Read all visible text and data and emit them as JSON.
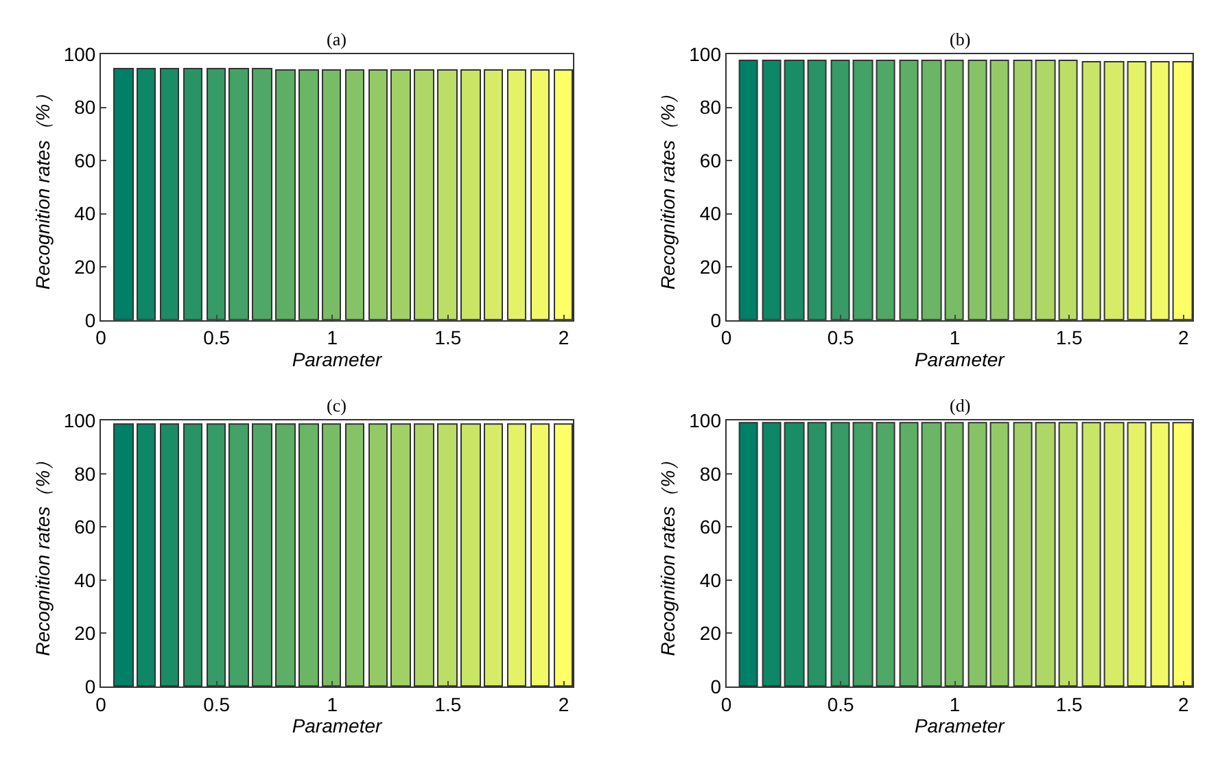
{
  "chart_data": [
    {
      "type": "bar",
      "title": "(a)",
      "xlabel": "Parameter",
      "ylabel": "Recognition rates（%）",
      "x": [
        0.1,
        0.2,
        0.3,
        0.4,
        0.5,
        0.6,
        0.7,
        0.8,
        0.9,
        1.0,
        1.1,
        1.2,
        1.3,
        1.4,
        1.5,
        1.6,
        1.7,
        1.8,
        1.9,
        2.0
      ],
      "values": [
        94.3,
        94.3,
        94.3,
        94.3,
        94.2,
        94.2,
        94.1,
        94.0,
        94.0,
        93.9,
        93.9,
        93.9,
        93.8,
        93.8,
        93.8,
        93.7,
        93.7,
        93.6,
        93.6,
        93.6
      ],
      "colors": [
        "#008066",
        "#0d8766",
        "#1b8d66",
        "#289466",
        "#369b66",
        "#43a266",
        "#51a866",
        "#5eaf66",
        "#6bb666",
        "#79bc66",
        "#86c366",
        "#94ca66",
        "#a1d166",
        "#aed766",
        "#bcde66",
        "#c9e566",
        "#d7eb66",
        "#e4f266",
        "#f2f966",
        "#ffff66"
      ],
      "xlim": [
        0,
        2.04
      ],
      "xticks": [
        0,
        0.5,
        1,
        1.5,
        2
      ],
      "ylim": [
        0,
        100
      ],
      "yticks": [
        0,
        20,
        40,
        60,
        80,
        100
      ]
    },
    {
      "type": "bar",
      "title": "(b)",
      "xlabel": "Parameter",
      "ylabel": "Recognition rates（%）",
      "x": [
        0.1,
        0.2,
        0.3,
        0.4,
        0.5,
        0.6,
        0.7,
        0.8,
        0.9,
        1.0,
        1.1,
        1.2,
        1.3,
        1.4,
        1.5,
        1.6,
        1.7,
        1.8,
        1.9,
        2.0
      ],
      "values": [
        97.2,
        97.2,
        97.2,
        97.2,
        97.3,
        97.3,
        97.3,
        97.4,
        97.4,
        97.4,
        97.3,
        97.3,
        97.2,
        97.2,
        97.2,
        97.1,
        97.1,
        97.1,
        97.0,
        97.0
      ],
      "colors": [
        "#008066",
        "#0d8766",
        "#1b8d66",
        "#289466",
        "#369b66",
        "#43a266",
        "#51a866",
        "#5eaf66",
        "#6bb666",
        "#79bc66",
        "#86c366",
        "#94ca66",
        "#a1d166",
        "#aed766",
        "#bcde66",
        "#c9e566",
        "#d7eb66",
        "#e4f266",
        "#f2f966",
        "#ffff66"
      ],
      "xlim": [
        0,
        2.04
      ],
      "xticks": [
        0,
        0.5,
        1,
        1.5,
        2
      ],
      "ylim": [
        0,
        100
      ],
      "yticks": [
        0,
        20,
        40,
        60,
        80,
        100
      ]
    },
    {
      "type": "bar",
      "title": "(c)",
      "xlabel": "Parameter",
      "ylabel": "Recognition rates（%）",
      "x": [
        0.1,
        0.2,
        0.3,
        0.4,
        0.5,
        0.6,
        0.7,
        0.8,
        0.9,
        1.0,
        1.1,
        1.2,
        1.3,
        1.4,
        1.5,
        1.6,
        1.7,
        1.8,
        1.9,
        2.0
      ],
      "values": [
        98.5,
        98.5,
        98.6,
        98.6,
        98.6,
        98.6,
        98.6,
        98.5,
        98.5,
        98.5,
        98.5,
        98.5,
        98.4,
        98.4,
        98.4,
        98.4,
        98.4,
        98.4,
        98.4,
        98.4
      ],
      "colors": [
        "#008066",
        "#0d8766",
        "#1b8d66",
        "#289466",
        "#369b66",
        "#43a266",
        "#51a866",
        "#5eaf66",
        "#6bb666",
        "#79bc66",
        "#86c366",
        "#94ca66",
        "#a1d166",
        "#aed766",
        "#bcde66",
        "#c9e566",
        "#d7eb66",
        "#e4f266",
        "#f2f966",
        "#ffff66"
      ],
      "xlim": [
        0,
        2.04
      ],
      "xticks": [
        0,
        0.5,
        1,
        1.5,
        2
      ],
      "ylim": [
        0,
        100
      ],
      "yticks": [
        0,
        20,
        40,
        60,
        80,
        100
      ]
    },
    {
      "type": "bar",
      "title": "(d)",
      "xlabel": "Parameter",
      "ylabel": "Recognition rates（%）",
      "x": [
        0.1,
        0.2,
        0.3,
        0.4,
        0.5,
        0.6,
        0.7,
        0.8,
        0.9,
        1.0,
        1.1,
        1.2,
        1.3,
        1.4,
        1.5,
        1.6,
        1.7,
        1.8,
        1.9,
        2.0
      ],
      "values": [
        98.9,
        98.9,
        98.9,
        98.9,
        98.9,
        98.9,
        98.9,
        98.9,
        98.9,
        98.9,
        98.9,
        98.8,
        98.8,
        98.8,
        98.8,
        98.8,
        98.8,
        98.8,
        98.8,
        98.8
      ],
      "colors": [
        "#008066",
        "#0d8766",
        "#1b8d66",
        "#289466",
        "#369b66",
        "#43a266",
        "#51a866",
        "#5eaf66",
        "#6bb666",
        "#79bc66",
        "#86c366",
        "#94ca66",
        "#a1d166",
        "#aed766",
        "#bcde66",
        "#c9e566",
        "#d7eb66",
        "#e4f266",
        "#f2f966",
        "#ffff66"
      ],
      "xlim": [
        0,
        2.04
      ],
      "xticks": [
        0,
        0.5,
        1,
        1.5,
        2
      ],
      "ylim": [
        0,
        100
      ],
      "yticks": [
        0,
        20,
        40,
        60,
        80,
        100
      ]
    }
  ]
}
